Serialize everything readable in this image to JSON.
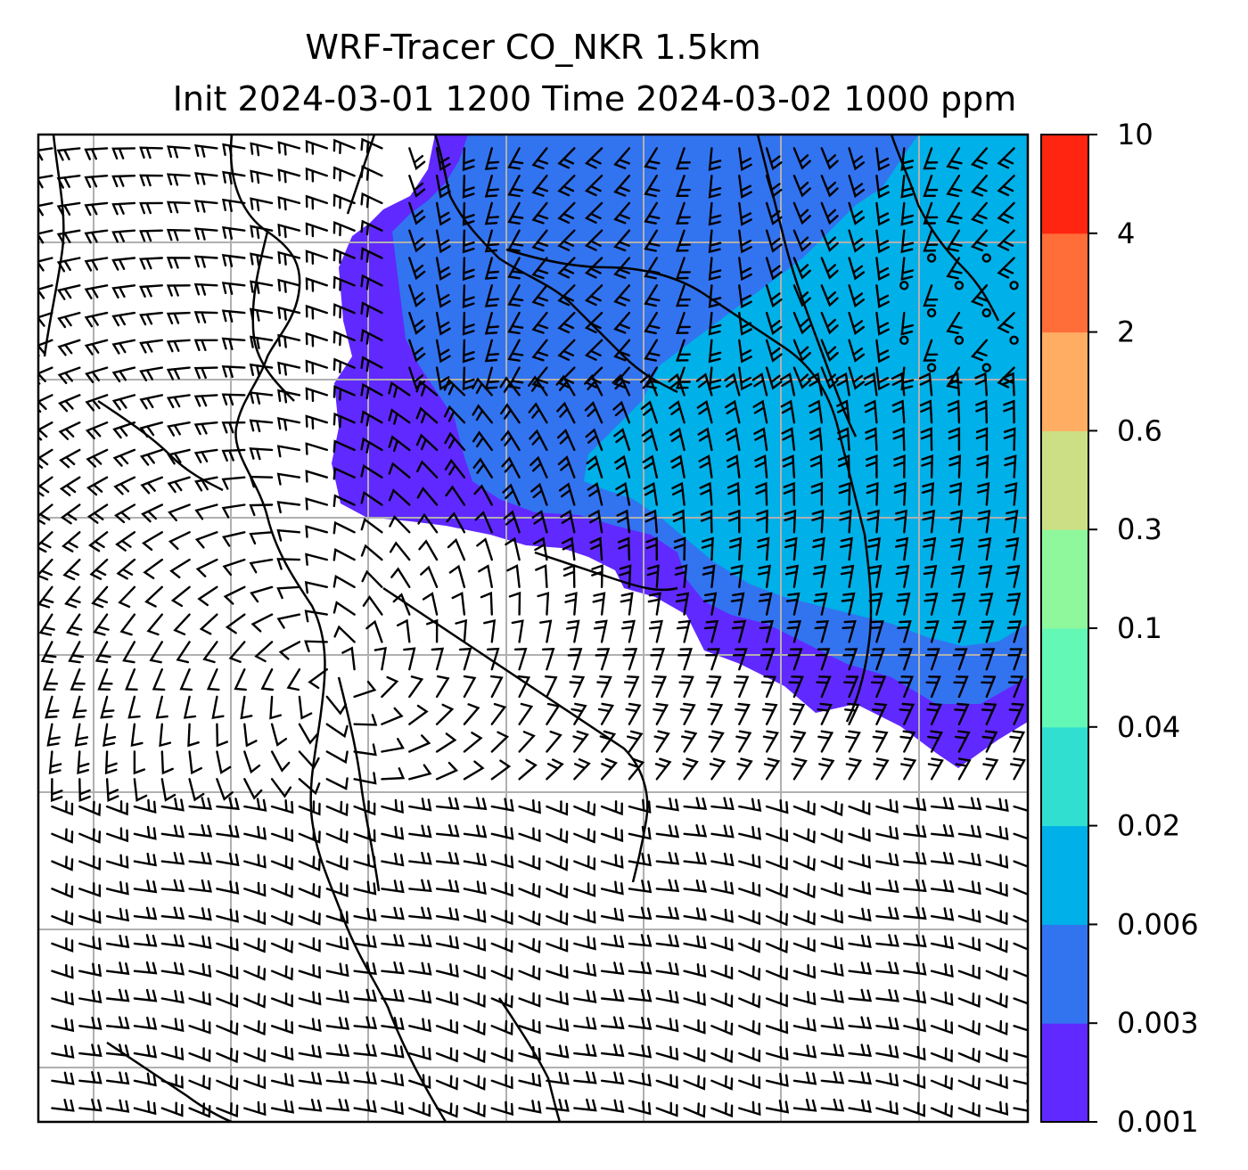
{
  "chart_data": {
    "type": "heatmap",
    "title_line1": "WRF-Tracer CO_NKR 1.5km",
    "title_line2": "Init 2024-03-01 1200 Time 2024-03-02 1000 ppm",
    "variable": "CO_NKR tracer concentration",
    "units": "ppm",
    "overlay": "wind barbs",
    "grid": true,
    "colorbar": {
      "placement": "right",
      "levels": [
        "0.001",
        "0.003",
        "0.006",
        "0.02",
        "0.04",
        "0.1",
        "0.3",
        "0.6",
        "2",
        "4",
        "10"
      ],
      "colors": [
        "#6029ff",
        "#3273f0",
        "#00b0e8",
        "#31dfd1",
        "#63f8b6",
        "#8ff89d",
        "#cddf84",
        "#ffad62",
        "#ff6d39",
        "#ff2511"
      ]
    },
    "colors": {
      "land_outline": "#000000",
      "gridline": "#b0b0b0",
      "background": "#ffffff"
    }
  }
}
